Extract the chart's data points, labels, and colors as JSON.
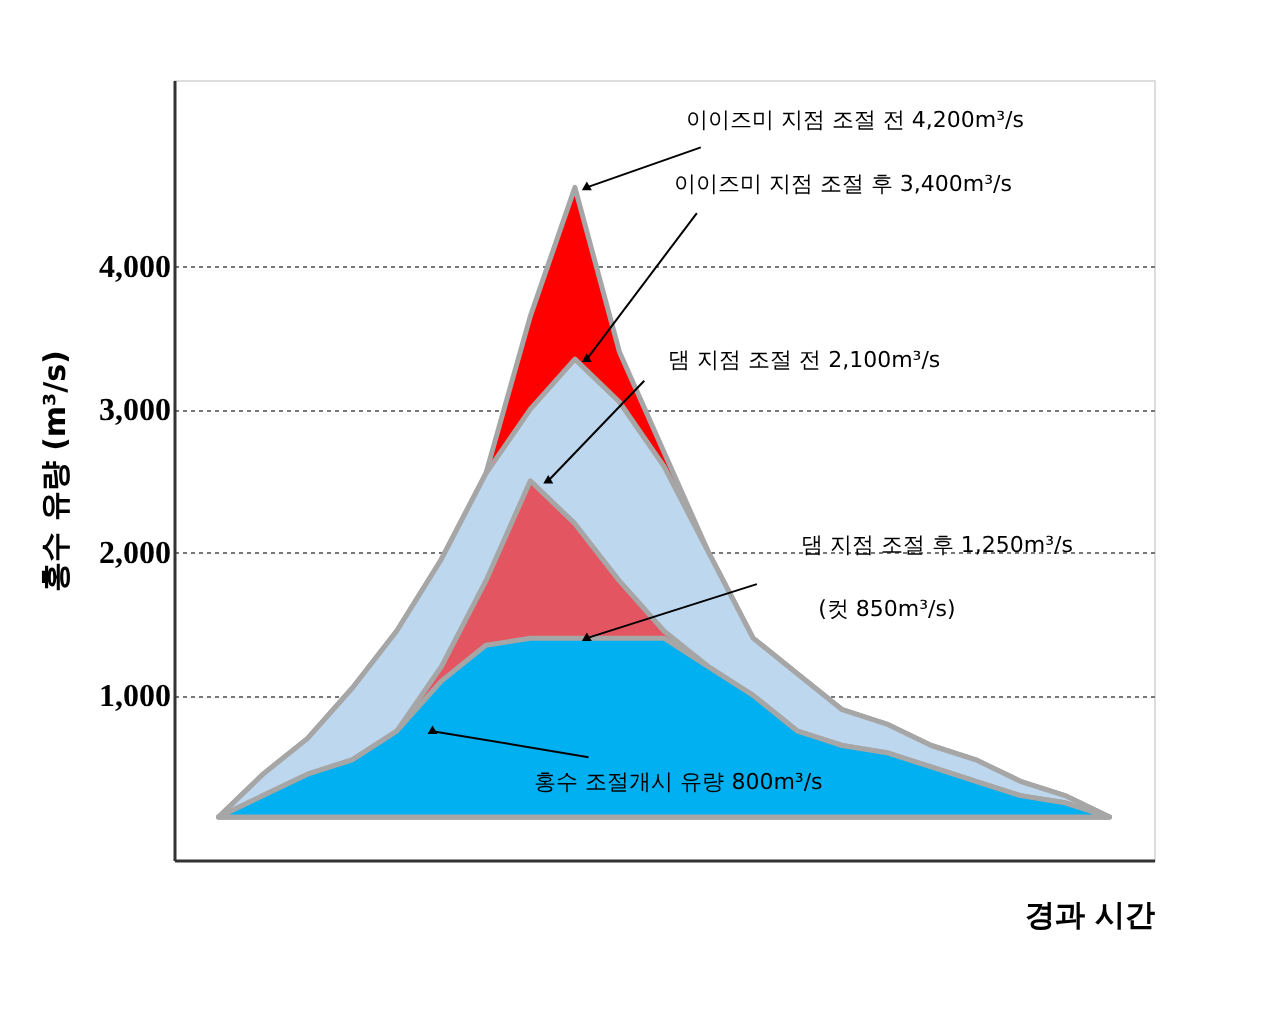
{
  "chart_data": {
    "type": "area",
    "xlabel": "경과 시간",
    "ylabel": "홍수 유량 (m³/s)",
    "categories": [
      null,
      null,
      null,
      null,
      null,
      null,
      null,
      null,
      null,
      null,
      null,
      null,
      null,
      null,
      null,
      null,
      null,
      null,
      null,
      null,
      null
    ],
    "ylim": [
      -150,
      5300
    ],
    "yticks": [
      {
        "value": 1000,
        "label": "1,000"
      },
      {
        "value": 2000,
        "label": "2,000"
      },
      {
        "value": 3000,
        "label": "3,000"
      },
      {
        "value": 4000,
        "label": "4,000"
      }
    ],
    "tick_labels": "y",
    "grid": "y",
    "series": [
      {
        "color": "#ff0000",
        "values": [
          150,
          450,
          700,
          1050,
          1450,
          1950,
          2550,
          3650,
          4550,
          3400,
          2700,
          2000,
          1400,
          1150,
          900,
          800,
          650,
          550,
          400,
          300,
          150
        ]
      },
      {
        "color": "#bdd7ee",
        "values": [
          150,
          450,
          700,
          1050,
          1450,
          1950,
          2550,
          3000,
          3350,
          3050,
          2600,
          2000,
          1400,
          1150,
          900,
          800,
          650,
          550,
          400,
          300,
          150
        ]
      },
      {
        "color": "#e35561",
        "values": [
          150,
          300,
          450,
          550,
          750,
          1200,
          1800,
          2500,
          2200,
          1800,
          1450,
          1200,
          1000,
          750,
          650,
          600,
          500,
          400,
          300,
          250,
          150
        ]
      },
      {
        "color": "#00b0f0",
        "values": [
          150,
          300,
          450,
          550,
          750,
          1100,
          1350,
          1400,
          1400,
          1400,
          1400,
          1200,
          1000,
          750,
          650,
          600,
          500,
          400,
          300,
          250,
          150
        ]
      }
    ],
    "annotations": [
      "이이즈미 지점 조절 전  4,200m³/s",
      "이이즈미 지점 조절 후  3,400m³/s",
      "댐 지점 조절 전  2,100m³/s",
      "댐 지점 조절 후  1,250m³/s",
      "(컷 850m³/s)",
      "홍수 조절개시 유량  800m³/s"
    ]
  }
}
